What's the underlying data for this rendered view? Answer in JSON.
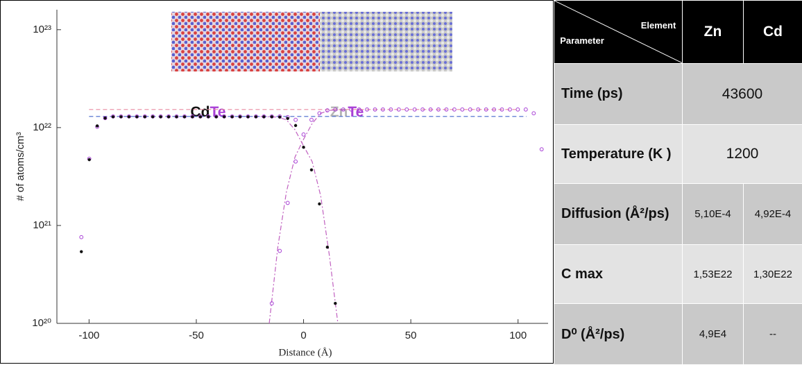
{
  "chart_data": {
    "type": "scatter",
    "xlabel": "Distance (Å)",
    "ylabel": "# of atoms/cm³",
    "xlim": [
      -115,
      114
    ],
    "xticks": [
      -100,
      -50,
      0,
      50,
      100
    ],
    "ylim": [
      1e+20,
      1.6e+23
    ],
    "ylog": true,
    "yticks": [
      {
        "value": 1e+20,
        "label": "10²⁰"
      },
      {
        "value": 1e+21,
        "label": "10²¹"
      },
      {
        "value": 1e+22,
        "label": "10²²"
      },
      {
        "value": 1e+23,
        "label": "10²³"
      }
    ],
    "annotations": [
      {
        "parts": [
          {
            "text": "Cd",
            "color": "#111111"
          },
          {
            "text": "Te",
            "color": "#a83fd6"
          }
        ]
      },
      {
        "parts": [
          {
            "text": "Zn",
            "color": "#b5b5b5"
          },
          {
            "text": "Te",
            "color": "#a83fd6"
          }
        ]
      }
    ],
    "series": [
      {
        "color": "#4466cc",
        "line": "dashed",
        "x": [
          -100,
          104
        ],
        "values": [
          1.3e+22,
          1.3e+22
        ]
      },
      {
        "color": "#e88aa0",
        "line": "dashed",
        "x": [
          -100,
          100
        ],
        "values": [
          1.53e+22,
          1.53e+22
        ]
      },
      {
        "color": "#c060c0",
        "line": "dashdot",
        "x": [
          -16,
          -12,
          -8,
          -4,
          0,
          4,
          8,
          12,
          20
        ],
        "values": [
          1e+20,
          6e+20,
          2.2e+21,
          5e+21,
          7.6e+21,
          1.1e+22,
          1.4e+22,
          1.5e+22,
          1.53e+22
        ]
      },
      {
        "color": "#c060c0",
        "line": "dashdot",
        "x": [
          -20,
          -12,
          -8,
          -4,
          0,
          4,
          8,
          12,
          16
        ],
        "values": [
          1.3e+22,
          1.28e+22,
          1.2e+22,
          9.5e+21,
          6.5e+21,
          4.5e+21,
          2e+21,
          5e+20,
          1e+20
        ]
      },
      {
        "color": "#a83fd6",
        "marker": "circle",
        "x": [
          -103.6,
          -99.9,
          -96.2,
          -92.5,
          -88.8,
          -85.1,
          -81.4,
          -77.7,
          -74,
          -70.3,
          -66.6,
          -62.9,
          -59.2,
          -55.5,
          -51.8,
          -48.1,
          -44.4,
          -40.7,
          -37,
          -33.3,
          -29.6,
          -25.9,
          -22.2,
          -18.5,
          -14.8,
          -11.1,
          -7.4,
          -3.7
        ],
        "values": [
          7.6e+20,
          4.8e+21,
          1.02e+22,
          1.25e+22,
          1.3e+22,
          1.3e+22,
          1.3e+22,
          1.3e+22,
          1.3e+22,
          1.3e+22,
          1.3e+22,
          1.3e+22,
          1.3e+22,
          1.3e+22,
          1.3e+22,
          1.3e+22,
          1.3e+22,
          1.3e+22,
          1.3e+22,
          1.3e+22,
          1.3e+22,
          1.3e+22,
          1.3e+22,
          1.3e+22,
          1.3e+22,
          1.3e+22,
          1.28e+22,
          1.2e+22
        ]
      },
      {
        "color": "#a83fd6",
        "marker": "circle",
        "x": [
          -14.8,
          -11.1,
          -7.4,
          -3.7,
          0,
          3.7,
          7.4,
          11.1,
          14.8,
          18.5,
          22.2,
          25.9,
          29.6,
          33.3,
          37,
          40.7,
          44.4,
          48.1,
          51.8,
          55.5,
          59.2,
          62.9,
          66.6,
          70.3,
          74,
          77.7,
          81.4,
          85.1,
          88.8,
          92.5,
          96.2,
          99.9,
          103.6,
          107.3,
          111
        ],
        "values": [
          1.6e+20,
          5.5e+20,
          1.7e+21,
          4.5e+21,
          8.5e+21,
          1.2e+22,
          1.4e+22,
          1.5e+22,
          1.53e+22,
          1.53e+22,
          1.53e+22,
          1.53e+22,
          1.53e+22,
          1.53e+22,
          1.53e+22,
          1.53e+22,
          1.53e+22,
          1.53e+22,
          1.53e+22,
          1.53e+22,
          1.53e+22,
          1.53e+22,
          1.53e+22,
          1.53e+22,
          1.53e+22,
          1.53e+22,
          1.53e+22,
          1.53e+22,
          1.53e+22,
          1.53e+22,
          1.53e+22,
          1.53e+22,
          1.53e+22,
          1.4e+22,
          6e+21
        ]
      },
      {
        "color": "#111111",
        "marker": "dot",
        "x": [
          -103.6,
          -99.9,
          -96.2,
          -92.5,
          -88.8,
          -85.1,
          -81.4,
          -77.7,
          -74,
          -70.3,
          -66.6,
          -62.9,
          -59.2,
          -55.5,
          -51.8,
          -48.1,
          -44.4,
          -40.7,
          -37,
          -33.3,
          -29.6,
          -25.9,
          -22.2,
          -18.5,
          -14.8,
          -11.1,
          -7.4,
          -3.7,
          0,
          3.7,
          7.4,
          11.1,
          14.8
        ],
        "values": [
          5.4e+20,
          4.7e+21,
          1.04e+22,
          1.25e+22,
          1.29e+22,
          1.29e+22,
          1.29e+22,
          1.29e+22,
          1.29e+22,
          1.29e+22,
          1.29e+22,
          1.29e+22,
          1.29e+22,
          1.29e+22,
          1.29e+22,
          1.29e+22,
          1.29e+22,
          1.29e+22,
          1.29e+22,
          1.29e+22,
          1.29e+22,
          1.29e+22,
          1.29e+22,
          1.29e+22,
          1.29e+22,
          1.28e+22,
          1.24e+22,
          1.05e+22,
          6.3e+21,
          3.7e+21,
          1.66e+21,
          6e+20,
          1.6e+20
        ]
      }
    ]
  },
  "table": {
    "header": {
      "element": "Element",
      "parameter": "Parameter",
      "columns": [
        "Zn",
        "Cd"
      ]
    },
    "rows": [
      {
        "label": "Time (ps)",
        "cells": [
          "43600"
        ]
      },
      {
        "label": "Temperature (K )",
        "cells": [
          "1200"
        ]
      },
      {
        "label": "Diffusion (Å²/ps)",
        "cells": [
          "5,10E-4",
          "4,92E-4"
        ]
      },
      {
        "label": "C max",
        "cells": [
          "1,53E22",
          "1,30E22"
        ]
      },
      {
        "label": "D⁰  (Å²/ps)",
        "cells": [
          "4,9E4",
          "--"
        ]
      }
    ]
  }
}
